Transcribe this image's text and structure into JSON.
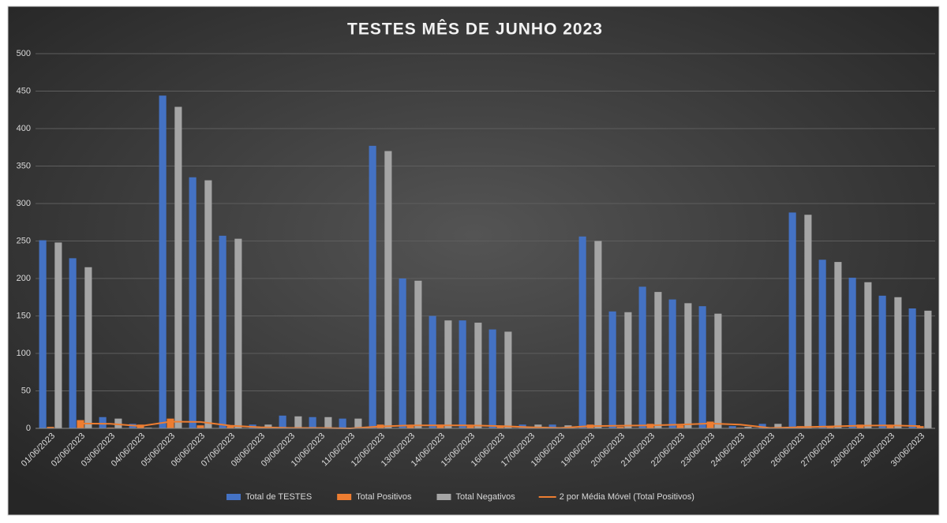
{
  "chart_data": {
    "type": "bar",
    "title": "TESTES MÊS DE JUNHO 2023",
    "categories": [
      "01/06/2023",
      "02/06/2023",
      "03/06/2023",
      "04/06/2023",
      "05/06/2023",
      "06/06/2023",
      "07/06/2023",
      "08/06/2023",
      "09/06/2023",
      "10/06/2023",
      "11/06/2023",
      "12/06/2023",
      "13/06/2023",
      "14/06/2023",
      "15/06/2023",
      "16/06/2023",
      "17/06/2023",
      "18/06/2023",
      "19/06/2023",
      "20/06/2023",
      "21/06/2023",
      "22/06/2023",
      "23/06/2023",
      "24/06/2023",
      "25/06/2023",
      "26/06/2023",
      "27/06/2023",
      "28/06/2023",
      "29/06/2023",
      "30/06/2023"
    ],
    "series": [
      {
        "name": "Total de TESTES",
        "color": "#4472c4",
        "kind": "bar",
        "values": [
          251,
          227,
          15,
          6,
          444,
          335,
          257,
          5,
          17,
          15,
          13,
          377,
          200,
          150,
          144,
          132,
          5,
          5,
          256,
          156,
          189,
          172,
          163,
          3,
          6,
          288,
          225,
          201,
          177,
          160
        ]
      },
      {
        "name": "Total Positivos",
        "color": "#ed7d31",
        "kind": "bar",
        "values": [
          2,
          11,
          1,
          5,
          13,
          4,
          3,
          0,
          1,
          0,
          0,
          5,
          3,
          5,
          3,
          3,
          0,
          1,
          5,
          2,
          6,
          4,
          9,
          1,
          0,
          3,
          2,
          5,
          3,
          3
        ]
      },
      {
        "name": "Total Negativos",
        "color": "#a5a5a5",
        "kind": "bar",
        "values": [
          248,
          215,
          13,
          1,
          429,
          331,
          253,
          5,
          16,
          15,
          13,
          370,
          197,
          144,
          141,
          129,
          5,
          4,
          250,
          155,
          182,
          167,
          153,
          2,
          6,
          285,
          222,
          195,
          175,
          157
        ]
      },
      {
        "name": "2 por Média Móvel (Total Positivos)",
        "color": "#ed7d31",
        "kind": "line",
        "values": [
          null,
          6.5,
          6,
          3,
          9,
          8.5,
          3.5,
          1.5,
          0.5,
          0.5,
          0,
          2.5,
          4,
          4,
          4,
          3,
          1.5,
          0.5,
          3,
          3.5,
          4,
          5,
          6.5,
          5,
          0.5,
          1.5,
          2.5,
          3.5,
          4,
          3
        ]
      }
    ],
    "ylim": [
      0,
      500
    ],
    "yticks": [
      0,
      50,
      100,
      150,
      200,
      250,
      300,
      350,
      400,
      450,
      500
    ],
    "grid": true,
    "legend": "bottom"
  }
}
